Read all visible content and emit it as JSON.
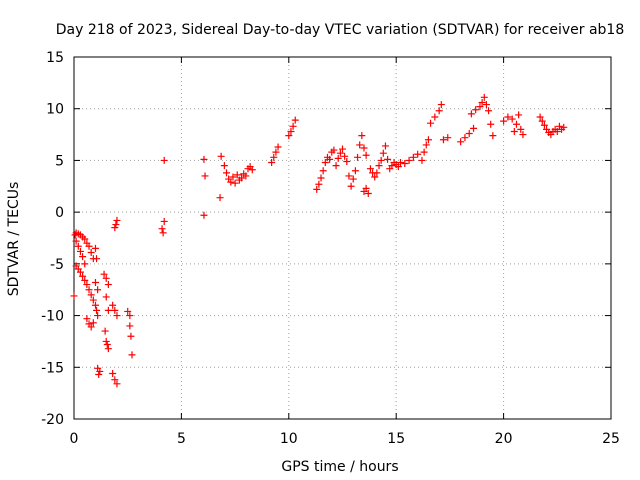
{
  "chart_data": {
    "type": "scatter",
    "title": "Day 218 of 2023, Sidereal Day-to-day VTEC variation (SDTVAR) for receiver ab18",
    "xlabel": "GPS time / hours",
    "ylabel": "SDTVAR / TECUs",
    "xlim": [
      0,
      25
    ],
    "ylim": [
      -20,
      15
    ],
    "x_ticks": [
      0,
      5,
      10,
      15,
      20,
      25
    ],
    "y_ticks": [
      -20,
      -15,
      -10,
      -5,
      0,
      5,
      10,
      15
    ],
    "x_tick_labels": [
      "0",
      "5",
      "10",
      "15",
      "20",
      "25"
    ],
    "y_tick_labels": [
      "-20",
      "-15",
      "-10",
      "-5",
      "0",
      "5",
      "10",
      "15"
    ],
    "grid": true,
    "marker": "+",
    "color": "#ff0000",
    "series": [
      {
        "name": "SDTVAR",
        "points": [
          [
            0.0,
            -8.1
          ],
          [
            0.05,
            -2.2
          ],
          [
            0.1,
            -2.0
          ],
          [
            0.2,
            -2.1
          ],
          [
            0.3,
            -2.2
          ],
          [
            0.4,
            -2.4
          ],
          [
            0.5,
            -2.6
          ],
          [
            0.6,
            -3.0
          ],
          [
            0.7,
            -3.3
          ],
          [
            0.8,
            -3.9
          ],
          [
            0.9,
            -4.5
          ],
          [
            0.1,
            -2.8
          ],
          [
            0.2,
            -3.3
          ],
          [
            0.3,
            -3.8
          ],
          [
            0.4,
            -4.3
          ],
          [
            0.5,
            -5.0
          ],
          [
            0.1,
            -5.2
          ],
          [
            0.2,
            -5.5
          ],
          [
            0.3,
            -5.8
          ],
          [
            0.4,
            -6.2
          ],
          [
            0.5,
            -6.6
          ],
          [
            0.6,
            -7.0
          ],
          [
            0.7,
            -7.5
          ],
          [
            0.8,
            -8.0
          ],
          [
            0.9,
            -8.5
          ],
          [
            1.0,
            -9.0
          ],
          [
            1.05,
            -9.5
          ],
          [
            1.1,
            -10.0
          ],
          [
            0.6,
            -10.3
          ],
          [
            0.7,
            -10.8
          ],
          [
            0.8,
            -11.1
          ],
          [
            0.9,
            -10.7
          ],
          [
            1.0,
            -6.8
          ],
          [
            1.1,
            -7.5
          ],
          [
            1.0,
            -3.5
          ],
          [
            1.05,
            -4.5
          ],
          [
            1.1,
            -15.1
          ],
          [
            1.2,
            -15.4
          ],
          [
            1.15,
            -15.7
          ],
          [
            1.4,
            -6.0
          ],
          [
            1.5,
            -6.4
          ],
          [
            1.6,
            -7.0
          ],
          [
            1.5,
            -8.2
          ],
          [
            1.6,
            -9.5
          ],
          [
            1.45,
            -11.5
          ],
          [
            1.5,
            -12.5
          ],
          [
            1.6,
            -13.2
          ],
          [
            1.55,
            -12.8
          ],
          [
            1.8,
            -9.0
          ],
          [
            1.9,
            -9.5
          ],
          [
            2.0,
            -10.0
          ],
          [
            1.8,
            -15.6
          ],
          [
            1.9,
            -16.2
          ],
          [
            2.0,
            -16.6
          ],
          [
            1.9,
            -1.5
          ],
          [
            2.0,
            -0.8
          ],
          [
            1.95,
            -1.2
          ],
          [
            2.5,
            -9.6
          ],
          [
            2.6,
            -10.0
          ],
          [
            2.6,
            -11.0
          ],
          [
            2.65,
            -12.0
          ],
          [
            2.7,
            -13.8
          ],
          [
            4.1,
            -1.6
          ],
          [
            4.15,
            -2.0
          ],
          [
            4.2,
            -0.9
          ],
          [
            4.2,
            5.0
          ],
          [
            6.05,
            5.1
          ],
          [
            6.1,
            3.5
          ],
          [
            6.05,
            -0.3
          ],
          [
            6.8,
            1.4
          ],
          [
            6.85,
            5.4
          ],
          [
            7.0,
            4.5
          ],
          [
            7.1,
            3.8
          ],
          [
            7.2,
            3.2
          ],
          [
            7.3,
            2.9
          ],
          [
            7.4,
            3.4
          ],
          [
            7.5,
            2.8
          ],
          [
            7.6,
            3.6
          ],
          [
            7.7,
            3.1
          ],
          [
            7.8,
            3.3
          ],
          [
            7.9,
            3.7
          ],
          [
            8.0,
            3.5
          ],
          [
            8.1,
            4.2
          ],
          [
            8.2,
            4.4
          ],
          [
            8.3,
            4.1
          ],
          [
            9.2,
            4.8
          ],
          [
            9.3,
            5.3
          ],
          [
            9.4,
            5.8
          ],
          [
            9.5,
            6.3
          ],
          [
            10.0,
            7.4
          ],
          [
            10.1,
            7.8
          ],
          [
            10.2,
            8.3
          ],
          [
            10.3,
            8.9
          ],
          [
            11.3,
            2.2
          ],
          [
            11.4,
            2.7
          ],
          [
            11.5,
            3.3
          ],
          [
            11.6,
            4.0
          ],
          [
            11.7,
            4.8
          ],
          [
            11.8,
            5.3
          ],
          [
            11.9,
            5.1
          ],
          [
            12.0,
            5.8
          ],
          [
            12.1,
            6.0
          ],
          [
            12.2,
            4.5
          ],
          [
            12.3,
            5.2
          ],
          [
            12.4,
            5.7
          ],
          [
            12.5,
            6.1
          ],
          [
            12.6,
            5.4
          ],
          [
            12.7,
            4.9
          ],
          [
            12.8,
            3.5
          ],
          [
            12.9,
            2.5
          ],
          [
            13.0,
            3.2
          ],
          [
            13.1,
            4.0
          ],
          [
            13.2,
            5.3
          ],
          [
            13.3,
            6.5
          ],
          [
            13.4,
            7.4
          ],
          [
            13.5,
            6.2
          ],
          [
            13.6,
            5.5
          ],
          [
            13.5,
            2.0
          ],
          [
            13.6,
            2.3
          ],
          [
            13.7,
            1.8
          ],
          [
            13.8,
            4.2
          ],
          [
            13.9,
            3.8
          ],
          [
            14.0,
            3.4
          ],
          [
            14.1,
            3.8
          ],
          [
            14.2,
            4.5
          ],
          [
            14.3,
            5.0
          ],
          [
            14.4,
            5.7
          ],
          [
            14.5,
            6.4
          ],
          [
            14.6,
            5.1
          ],
          [
            14.7,
            4.2
          ],
          [
            14.8,
            4.5
          ],
          [
            14.9,
            4.8
          ],
          [
            15.0,
            4.6
          ],
          [
            15.1,
            4.4
          ],
          [
            15.2,
            4.8
          ],
          [
            15.4,
            4.7
          ],
          [
            15.6,
            5.0
          ],
          [
            15.8,
            5.3
          ],
          [
            16.0,
            5.6
          ],
          [
            16.2,
            5.0
          ],
          [
            16.3,
            5.8
          ],
          [
            16.4,
            6.5
          ],
          [
            16.5,
            7.0
          ],
          [
            16.6,
            8.6
          ],
          [
            16.8,
            9.2
          ],
          [
            17.0,
            9.8
          ],
          [
            17.1,
            10.4
          ],
          [
            17.2,
            7.0
          ],
          [
            17.4,
            7.2
          ],
          [
            18.0,
            6.8
          ],
          [
            18.2,
            7.2
          ],
          [
            18.4,
            7.6
          ],
          [
            18.6,
            8.1
          ],
          [
            18.5,
            9.5
          ],
          [
            18.7,
            9.9
          ],
          [
            18.9,
            10.2
          ],
          [
            19.0,
            10.6
          ],
          [
            19.1,
            11.1
          ],
          [
            19.2,
            10.4
          ],
          [
            19.3,
            9.8
          ],
          [
            19.4,
            8.5
          ],
          [
            19.5,
            7.4
          ],
          [
            20.0,
            8.8
          ],
          [
            20.2,
            9.2
          ],
          [
            20.4,
            9.0
          ],
          [
            20.5,
            7.8
          ],
          [
            20.6,
            8.5
          ],
          [
            20.7,
            9.4
          ],
          [
            20.8,
            8.0
          ],
          [
            20.9,
            7.5
          ],
          [
            21.7,
            9.2
          ],
          [
            21.8,
            8.8
          ],
          [
            21.9,
            8.4
          ],
          [
            22.0,
            8.0
          ],
          [
            22.1,
            7.7
          ],
          [
            22.2,
            7.5
          ],
          [
            22.3,
            7.8
          ],
          [
            22.4,
            8.0
          ],
          [
            22.5,
            7.8
          ],
          [
            22.6,
            8.3
          ],
          [
            22.7,
            8.0
          ],
          [
            22.8,
            8.2
          ]
        ]
      }
    ]
  }
}
